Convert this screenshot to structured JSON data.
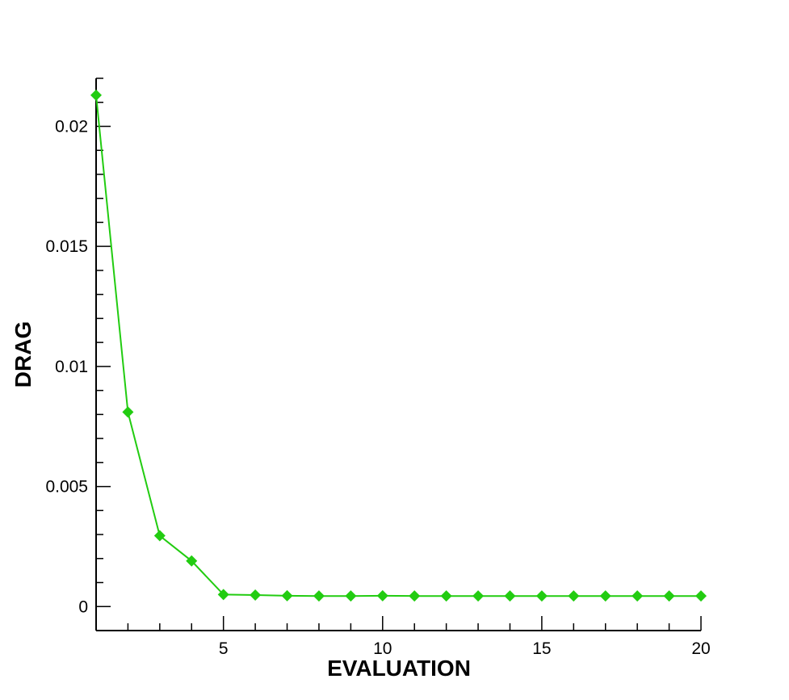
{
  "chart_data": {
    "type": "line",
    "title": "",
    "xlabel": "EVALUATION",
    "ylabel": "DRAG",
    "xlim": [
      1,
      20
    ],
    "ylim": [
      -0.001,
      0.022
    ],
    "x_ticks": [
      5,
      10,
      15,
      20
    ],
    "x_tick_labels": [
      "5",
      "10",
      "15",
      "20"
    ],
    "y_ticks": [
      0,
      0.005,
      0.01,
      0.015,
      0.02
    ],
    "y_tick_labels": [
      "0",
      "0.005",
      "0.01",
      "0.015",
      "0.02"
    ],
    "grid": false,
    "legend": "none",
    "series": [
      {
        "color": "#22cc11",
        "marker": "diamond",
        "x": [
          1,
          2,
          3,
          4,
          5,
          6,
          7,
          8,
          9,
          10,
          11,
          12,
          13,
          14,
          15,
          16,
          17,
          18,
          19,
          20
        ],
        "y": [
          0.0213,
          0.0081,
          0.00295,
          0.0019,
          0.0005,
          0.00048,
          0.00045,
          0.00044,
          0.00044,
          0.00045,
          0.00044,
          0.00044,
          0.00044,
          0.00044,
          0.00044,
          0.00044,
          0.00044,
          0.00044,
          0.00044,
          0.00044
        ]
      }
    ]
  }
}
